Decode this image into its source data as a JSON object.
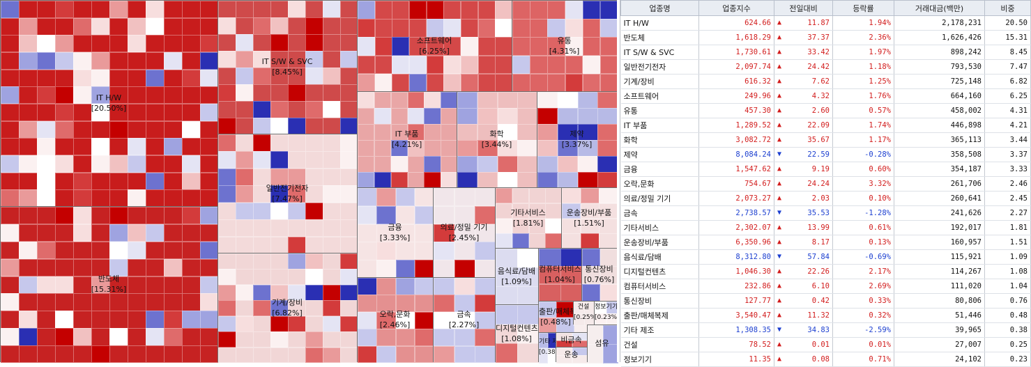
{
  "chart_data": {
    "type": "treemap",
    "sectors": [
      {
        "name": "IT H/W",
        "weight": "[20.50%]",
        "share": 20.5,
        "color": "#c81c1c"
      },
      {
        "name": "반도체",
        "weight": "[15.31%]",
        "share": 15.31,
        "color": "#c62222"
      },
      {
        "name": "IT S/W & SVC",
        "weight": "[8.45%]",
        "share": 8.45,
        "color": "#cf4a4a"
      },
      {
        "name": "일반전기전자",
        "weight": "[7.47%]",
        "share": 7.47,
        "color": "#f3dada"
      },
      {
        "name": "기계/장비",
        "weight": "[6.82%]",
        "share": 6.82,
        "color": "#f1d6d6"
      },
      {
        "name": "소프트웨어",
        "weight": "[6.25%]",
        "share": 6.25,
        "color": "#d44848"
      },
      {
        "name": "유통",
        "weight": "[4.31%]",
        "share": 4.31,
        "color": "#dd6464"
      },
      {
        "name": "IT 부품",
        "weight": "[4.21%]",
        "share": 4.21,
        "color": "#e9a6a6"
      },
      {
        "name": "화학",
        "weight": "[3.44%]",
        "share": 3.44,
        "color": "#eebebe"
      },
      {
        "name": "제약",
        "weight": "[3.37%]",
        "share": 3.37,
        "color": "#b7bae6"
      },
      {
        "name": "금융",
        "weight": "[3.33%]",
        "share": 3.33,
        "color": "#f6e4e4"
      },
      {
        "name": "의료/정밀 기기",
        "weight": "[2.45%]",
        "share": 2.45,
        "color": "#f1e6ea"
      },
      {
        "name": "오락,문화",
        "weight": "[2.46%]",
        "share": 2.46,
        "color": "#e49090"
      },
      {
        "name": "금속",
        "weight": "[2.27%]",
        "share": 2.27,
        "color": "#c6c8ec"
      },
      {
        "name": "기타서비스",
        "weight": "[1.81%]",
        "share": 1.81,
        "color": "#f1d3d3"
      },
      {
        "name": "운송장비/부품",
        "weight": "[1.51%]",
        "share": 1.51,
        "color": "#f4e0e0"
      },
      {
        "name": "음식료/담배",
        "weight": "[1.09%]",
        "share": 1.09,
        "color": "#dcdcf0"
      },
      {
        "name": "컴퓨터서비스",
        "weight": "[1.04%]",
        "share": 1.04,
        "color": "#d86060"
      },
      {
        "name": "통신장비",
        "weight": "[0.76%]",
        "share": 0.76,
        "color": "#f0dede"
      },
      {
        "name": "디지털컨텐츠",
        "weight": "[1.08%]",
        "share": 1.08,
        "color": "#f2d8d8"
      },
      {
        "name": "출판/매체복제",
        "weight": "[0.48%]",
        "share": 0.48,
        "color": "#ead0d0"
      },
      {
        "name": "기타 제조",
        "weight": "[0.38%]",
        "share": 0.38,
        "color": "#b8bce8"
      },
      {
        "name": "건설",
        "weight": "[0.25%]",
        "share": 0.25,
        "color": "#f5eaea"
      },
      {
        "name": "정보기기",
        "weight": "[0.23%]",
        "share": 0.23,
        "color": "#f5ecec"
      },
      {
        "name": "비금속",
        "weight": "",
        "share": null,
        "color": "#f2e2e2"
      },
      {
        "name": "운송",
        "weight": "",
        "share": null,
        "color": "#f6eaea"
      },
      {
        "name": "섬유",
        "weight": "",
        "share": null,
        "color": "#f6eeee"
      }
    ]
  },
  "table": {
    "headers": [
      "업종명",
      "업종지수",
      "전일대비",
      "등락률",
      "거래대금(백만)",
      "비중"
    ],
    "rows": [
      {
        "name": "IT H/W",
        "index": "624.66",
        "dir": "up",
        "arrow": "▲",
        "change": "11.87",
        "rate": "1.94%",
        "amount": "2,178,231",
        "weight": "20.50"
      },
      {
        "name": "반도체",
        "index": "1,618.29",
        "dir": "up",
        "arrow": "▲",
        "change": "37.37",
        "rate": "2.36%",
        "amount": "1,626,426",
        "weight": "15.31"
      },
      {
        "name": "IT S/W & SVC",
        "index": "1,730.61",
        "dir": "up",
        "arrow": "▲",
        "change": "33.42",
        "rate": "1.97%",
        "amount": "898,242",
        "weight": "8.45"
      },
      {
        "name": "일반전기전자",
        "index": "2,097.74",
        "dir": "up",
        "arrow": "▲",
        "change": "24.42",
        "rate": "1.18%",
        "amount": "793,530",
        "weight": "7.47"
      },
      {
        "name": "기계/장비",
        "index": "616.32",
        "dir": "up",
        "arrow": "▲",
        "change": "7.62",
        "rate": "1.25%",
        "amount": "725,148",
        "weight": "6.82"
      },
      {
        "name": "소프트웨어",
        "index": "249.96",
        "dir": "up",
        "arrow": "▲",
        "change": "4.32",
        "rate": "1.76%",
        "amount": "664,160",
        "weight": "6.25"
      },
      {
        "name": "유통",
        "index": "457.30",
        "dir": "up",
        "arrow": "▲",
        "change": "2.60",
        "rate": "0.57%",
        "amount": "458,002",
        "weight": "4.31"
      },
      {
        "name": "IT 부품",
        "index": "1,289.52",
        "dir": "up",
        "arrow": "▲",
        "change": "22.09",
        "rate": "1.74%",
        "amount": "446,898",
        "weight": "4.21"
      },
      {
        "name": "화학",
        "index": "3,082.72",
        "dir": "up",
        "arrow": "▲",
        "change": "35.67",
        "rate": "1.17%",
        "amount": "365,113",
        "weight": "3.44"
      },
      {
        "name": "제약",
        "index": "8,084.24",
        "dir": "down",
        "arrow": "▼",
        "change": "22.59",
        "rate": "-0.28%",
        "amount": "358,508",
        "weight": "3.37"
      },
      {
        "name": "금융",
        "index": "1,547.62",
        "dir": "up",
        "arrow": "▲",
        "change": "9.19",
        "rate": "0.60%",
        "amount": "354,187",
        "weight": "3.33"
      },
      {
        "name": "오락,문화",
        "index": "754.67",
        "dir": "up",
        "arrow": "▲",
        "change": "24.24",
        "rate": "3.32%",
        "amount": "261,706",
        "weight": "2.46"
      },
      {
        "name": "의료/정밀 기기",
        "index": "2,073.27",
        "dir": "up",
        "arrow": "▲",
        "change": "2.03",
        "rate": "0.10%",
        "amount": "260,641",
        "weight": "2.45"
      },
      {
        "name": "금속",
        "index": "2,738.57",
        "dir": "down",
        "arrow": "▼",
        "change": "35.53",
        "rate": "-1.28%",
        "amount": "241,626",
        "weight": "2.27"
      },
      {
        "name": "기타서비스",
        "index": "2,302.07",
        "dir": "up",
        "arrow": "▲",
        "change": "13.99",
        "rate": "0.61%",
        "amount": "192,017",
        "weight": "1.81"
      },
      {
        "name": "운송장비/부품",
        "index": "6,350.96",
        "dir": "up",
        "arrow": "▲",
        "change": "8.17",
        "rate": "0.13%",
        "amount": "160,957",
        "weight": "1.51"
      },
      {
        "name": "음식료/담배",
        "index": "8,312.80",
        "dir": "down",
        "arrow": "▼",
        "change": "57.84",
        "rate": "-0.69%",
        "amount": "115,921",
        "weight": "1.09"
      },
      {
        "name": "디지털컨텐츠",
        "index": "1,046.30",
        "dir": "up",
        "arrow": "▲",
        "change": "22.26",
        "rate": "2.17%",
        "amount": "114,267",
        "weight": "1.08"
      },
      {
        "name": "컴퓨터서비스",
        "index": "232.86",
        "dir": "up",
        "arrow": "▲",
        "change": "6.10",
        "rate": "2.69%",
        "amount": "111,020",
        "weight": "1.04"
      },
      {
        "name": "통신장비",
        "index": "127.77",
        "dir": "up",
        "arrow": "▲",
        "change": "0.42",
        "rate": "0.33%",
        "amount": "80,806",
        "weight": "0.76"
      },
      {
        "name": "출판/매체복제",
        "index": "3,540.47",
        "dir": "up",
        "arrow": "▲",
        "change": "11.32",
        "rate": "0.32%",
        "amount": "51,446",
        "weight": "0.48"
      },
      {
        "name": "기타 제조",
        "index": "1,308.35",
        "dir": "down",
        "arrow": "▼",
        "change": "34.83",
        "rate": "-2.59%",
        "amount": "39,965",
        "weight": "0.38"
      },
      {
        "name": "건설",
        "index": "78.52",
        "dir": "up",
        "arrow": "▲",
        "change": "0.01",
        "rate": "0.01%",
        "amount": "27,007",
        "weight": "0.25"
      },
      {
        "name": "정보기기",
        "index": "11.35",
        "dir": "up",
        "arrow": "▲",
        "change": "0.08",
        "rate": "0.71%",
        "amount": "24,102",
        "weight": "0.23"
      }
    ]
  }
}
